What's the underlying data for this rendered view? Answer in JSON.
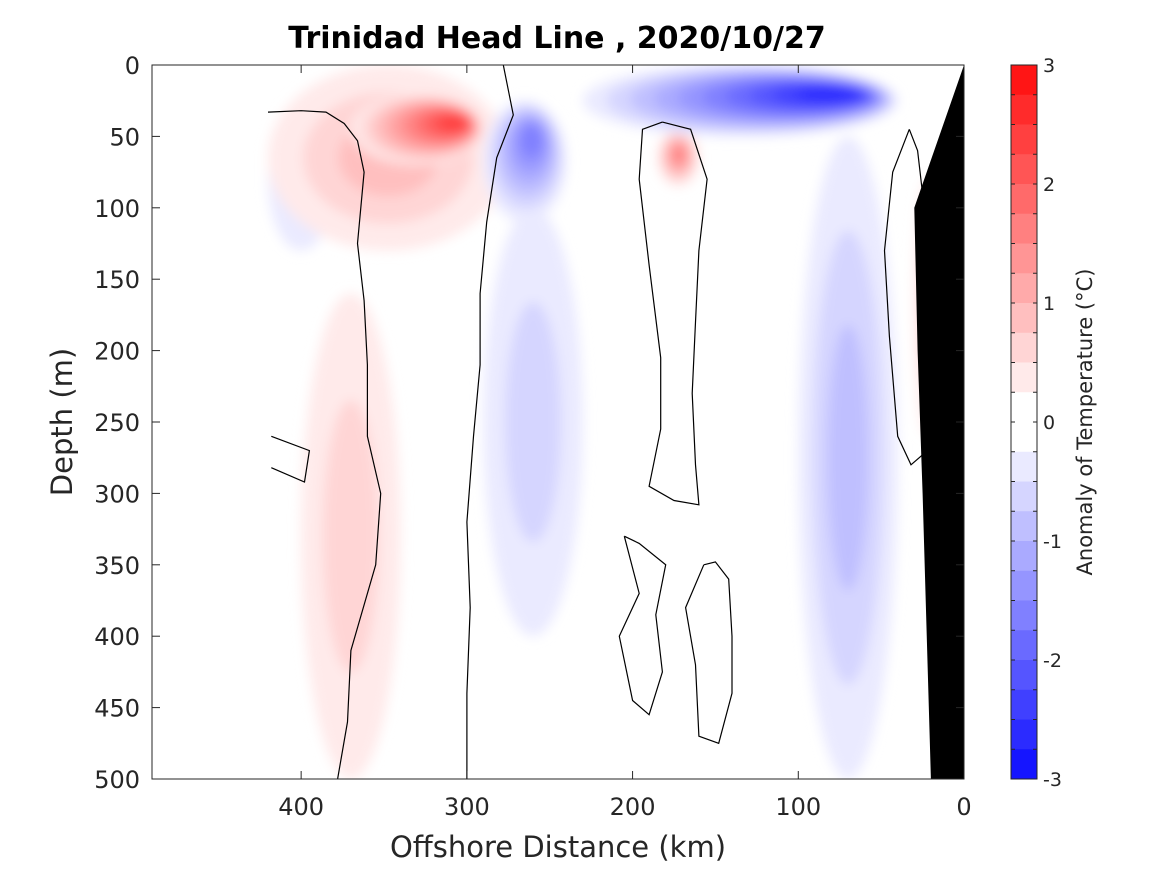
{
  "chart_data": {
    "type": "heatmap",
    "title": "Trinidad Head Line , 2020/10/27",
    "xlabel": "Offshore Distance (km)",
    "ylabel": "Depth (m)",
    "xlim": [
      490,
      0
    ],
    "ylim": [
      0,
      500
    ],
    "x_reversed": true,
    "y_reversed": true,
    "x_ticks": [
      400,
      300,
      200,
      100,
      0
    ],
    "y_ticks": [
      0,
      50,
      100,
      150,
      200,
      250,
      300,
      350,
      400,
      450,
      500
    ],
    "colorbar": {
      "label": "Anomaly of Temperature (°C)",
      "range": [
        -3,
        3
      ],
      "level_step": 0.25,
      "ticks": [
        3,
        2,
        1,
        0,
        -1,
        -2,
        -3
      ],
      "tick_labels": [
        "3",
        "2",
        "1",
        "0",
        "-1",
        "-2",
        "-3"
      ]
    },
    "colors": {
      "cold_max": "#0000ff",
      "warm_max": "#ff0000",
      "neutral": "#ffffff",
      "bathymetry": "#000000",
      "contour_line": "#000000"
    },
    "grid": false,
    "anomaly_features": [
      {
        "kind": "warm",
        "dist_range": [
          290,
          370
        ],
        "depth_range": [
          20,
          70
        ],
        "peak_dist": 305,
        "peak_depth": 40,
        "peak_anomaly": 2.1
      },
      {
        "kind": "warm",
        "dist_range": [
          275,
          420
        ],
        "depth_range": [
          0,
          130
        ],
        "peak_anomaly": 0.6
      },
      {
        "kind": "warm",
        "dist_range": [
          160,
          185
        ],
        "depth_range": [
          45,
          85
        ],
        "peak_dist": 172,
        "peak_depth": 62,
        "peak_anomaly": 1.5
      },
      {
        "kind": "warm",
        "dist_range": [
          340,
          400
        ],
        "depth_range": [
          160,
          500
        ],
        "peak_anomaly": 0.4
      },
      {
        "kind": "warm",
        "dist_range": [
          15,
          30
        ],
        "depth_range": [
          80,
          260
        ],
        "peak_anomaly": 0.3
      },
      {
        "kind": "cold",
        "dist_range": [
          40,
          230
        ],
        "depth_range": [
          0,
          50
        ],
        "peak_dist": 75,
        "peak_depth": 20,
        "peak_anomaly": -2.3
      },
      {
        "kind": "cold",
        "dist_range": [
          240,
          290
        ],
        "depth_range": [
          25,
          110
        ],
        "peak_dist": 260,
        "peak_depth": 50,
        "peak_anomaly": -1.4
      },
      {
        "kind": "cold",
        "dist_range": [
          40,
          100
        ],
        "depth_range": [
          50,
          500
        ],
        "peak_anomaly": -0.6
      },
      {
        "kind": "cold",
        "dist_range": [
          230,
          290
        ],
        "depth_range": [
          100,
          400
        ],
        "peak_anomaly": -0.3
      },
      {
        "kind": "cold",
        "dist_range": [
          380,
          420
        ],
        "depth_range": [
          30,
          130
        ],
        "peak_anomaly": -0.4
      }
    ],
    "zero_contours": [
      [
        [
          420,
          33
        ],
        [
          400,
          32
        ],
        [
          385,
          33
        ],
        [
          374,
          41
        ],
        [
          366,
          53
        ],
        [
          362,
          75
        ],
        [
          366,
          125
        ],
        [
          362,
          165
        ],
        [
          360,
          210
        ],
        [
          360,
          260
        ],
        [
          352,
          300
        ],
        [
          355,
          350
        ],
        [
          370,
          410
        ],
        [
          372,
          460
        ],
        [
          378,
          500
        ]
      ],
      [
        [
          278,
          0
        ],
        [
          272,
          35
        ],
        [
          282,
          65
        ],
        [
          288,
          110
        ],
        [
          292,
          160
        ],
        [
          292,
          210
        ],
        [
          296,
          260
        ],
        [
          300,
          320
        ],
        [
          298,
          380
        ],
        [
          300,
          440
        ],
        [
          300,
          500
        ]
      ],
      [
        [
          182,
          40
        ],
        [
          194,
          45
        ],
        [
          196,
          80
        ],
        [
          190,
          140
        ],
        [
          183,
          205
        ],
        [
          183,
          255
        ],
        [
          190,
          295
        ],
        [
          175,
          305
        ],
        [
          160,
          308
        ],
        [
          162,
          280
        ],
        [
          164,
          230
        ],
        [
          162,
          180
        ],
        [
          160,
          130
        ],
        [
          155,
          80
        ],
        [
          165,
          45
        ],
        [
          182,
          40
        ]
      ],
      [
        [
          33,
          45
        ],
        [
          43,
          75
        ],
        [
          48,
          130
        ],
        [
          45,
          190
        ],
        [
          40,
          260
        ],
        [
          32,
          280
        ],
        [
          22,
          270
        ],
        [
          20,
          200
        ],
        [
          22,
          120
        ],
        [
          28,
          60
        ],
        [
          33,
          45
        ]
      ],
      [
        [
          418,
          260
        ],
        [
          395,
          270
        ],
        [
          398,
          292
        ],
        [
          418,
          282
        ]
      ],
      [
        [
          205,
          330
        ],
        [
          196,
          370
        ],
        [
          208,
          400
        ],
        [
          200,
          445
        ],
        [
          190,
          455
        ],
        [
          182,
          425
        ],
        [
          186,
          385
        ],
        [
          180,
          350
        ],
        [
          196,
          335
        ],
        [
          205,
          330
        ]
      ],
      [
        [
          157,
          350
        ],
        [
          168,
          380
        ],
        [
          162,
          420
        ],
        [
          160,
          470
        ],
        [
          148,
          475
        ],
        [
          140,
          440
        ],
        [
          140,
          400
        ],
        [
          142,
          360
        ],
        [
          150,
          348
        ],
        [
          157,
          350
        ]
      ]
    ],
    "bathymetry_polygon": [
      [
        0,
        0
      ],
      [
        0,
        500
      ],
      [
        20,
        500
      ],
      [
        25,
        300
      ],
      [
        28,
        200
      ],
      [
        30,
        100
      ]
    ]
  }
}
